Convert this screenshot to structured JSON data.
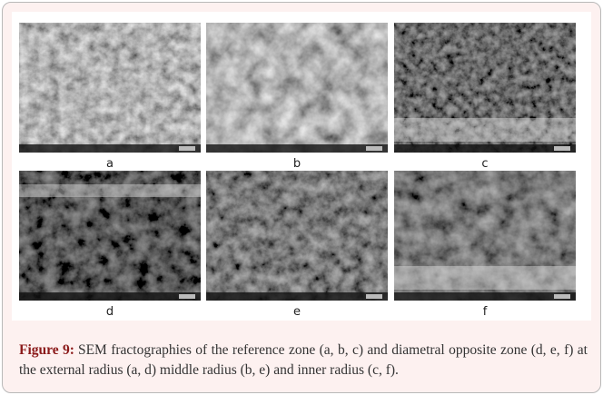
{
  "figure": {
    "panels": [
      {
        "label": "a"
      },
      {
        "label": "b"
      },
      {
        "label": "c"
      },
      {
        "label": "d"
      },
      {
        "label": "e"
      },
      {
        "label": "f"
      }
    ],
    "caption": {
      "label": "Figure 9:",
      "text": "SEM fractographies of the reference zone (a, b, c) and diametral opposite zone (d, e, f) at the external radius (a, d) middle radius (b, e) and inner radius (c, f)."
    }
  }
}
